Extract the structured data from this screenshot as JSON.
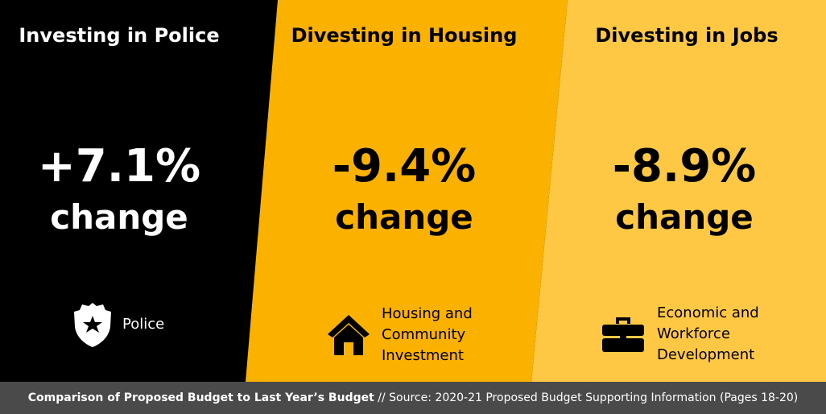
{
  "colors": {
    "police_bg": "#000000",
    "housing_bg": "#fbb100",
    "jobs_bg": "#ffc844",
    "footer_bg": "#4a4a4a"
  },
  "panels": [
    {
      "heading": "Investing in Police",
      "percent": "+7.1%",
      "change": "change",
      "icon": "police-badge-icon",
      "label_lines": [
        "Police"
      ]
    },
    {
      "heading": "Divesting in Housing",
      "percent": "-9.4%",
      "change": "change",
      "icon": "house-icon",
      "label_lines": [
        "Housing and",
        "Community",
        "Investment"
      ]
    },
    {
      "heading": "Divesting in Jobs",
      "percent": "-8.9%",
      "change": "change",
      "icon": "briefcase-icon",
      "label_lines": [
        "Economic and",
        "Workforce",
        "Development"
      ]
    }
  ],
  "footer": {
    "title": "Comparison of Proposed Budget to Last Year’s Budget",
    "separator": " // ",
    "source": "Source: 2020-21 Proposed Budget Supporting Information (Pages 18-20)"
  }
}
